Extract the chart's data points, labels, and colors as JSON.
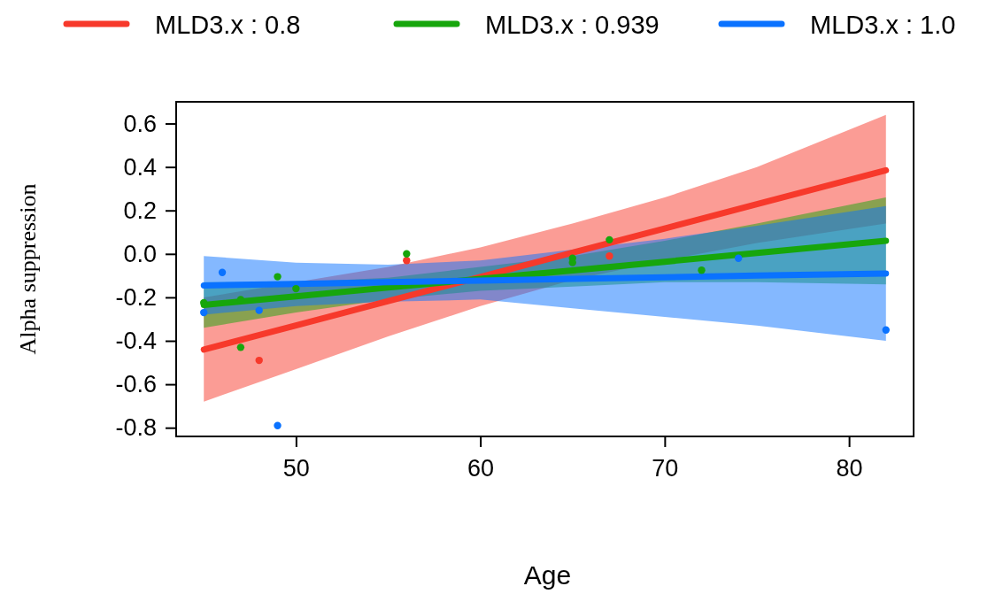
{
  "chart_data": {
    "type": "line",
    "xlabel": "Age",
    "ylabel": "Alpha suppression",
    "xlim": [
      43.5,
      83.5
    ],
    "ylim": [
      -0.84,
      0.7
    ],
    "xticks": [
      50,
      60,
      70,
      80
    ],
    "yticks": [
      -0.8,
      -0.6,
      -0.4,
      -0.2,
      {
        "value": 0,
        "label": "0.0"
      },
      0.2,
      0.4,
      0.6
    ],
    "legend": "top",
    "series": [
      {
        "name": "MLD3.x : 0.8",
        "color": "#f7392b",
        "x": [
          45,
          50,
          55,
          60,
          65,
          70,
          75,
          82
        ],
        "values": [
          -0.44,
          -0.329,
          -0.217,
          -0.106,
          0.006,
          0.117,
          0.229,
          0.385
        ],
        "lower": [
          -0.68,
          -0.53,
          -0.38,
          -0.24,
          -0.12,
          -0.03,
          0.05,
          0.14
        ],
        "upper": [
          -0.2,
          -0.13,
          -0.06,
          0.03,
          0.14,
          0.26,
          0.4,
          0.64
        ]
      },
      {
        "name": "MLD3.x : 0.939",
        "color": "#17a60c",
        "x": [
          45,
          50,
          55,
          60,
          65,
          70,
          75,
          82
        ],
        "values": [
          -0.235,
          -0.195,
          -0.155,
          -0.115,
          -0.076,
          -0.036,
          0.004,
          0.06
        ],
        "lower": [
          -0.34,
          -0.27,
          -0.21,
          -0.17,
          -0.15,
          -0.13,
          -0.13,
          -0.14
        ],
        "upper": [
          -0.13,
          -0.13,
          -0.11,
          -0.06,
          -0.01,
          0.06,
          0.14,
          0.26
        ]
      },
      {
        "name": "MLD3.x : 1.0",
        "color": "#0a72ff",
        "x": [
          45,
          50,
          55,
          60,
          65,
          70,
          75,
          82
        ],
        "values": [
          -0.145,
          -0.138,
          -0.13,
          -0.123,
          -0.115,
          -0.108,
          -0.1,
          -0.09
        ],
        "lower": [
          -0.28,
          -0.24,
          -0.22,
          -0.21,
          -0.25,
          -0.29,
          -0.33,
          -0.4
        ],
        "upper": [
          -0.01,
          -0.04,
          -0.05,
          -0.03,
          0.02,
          0.07,
          0.13,
          0.22
        ]
      },
      {
        "type": "scatter",
        "color": "#f7392b",
        "x": [
          48,
          56,
          67
        ],
        "values": [
          -0.49,
          -0.03,
          -0.01
        ]
      },
      {
        "type": "scatter",
        "color": "#17a60c",
        "x": [
          45,
          47,
          47,
          49,
          50,
          56,
          65,
          65,
          67,
          72
        ],
        "values": [
          -0.225,
          -0.21,
          -0.43,
          -0.105,
          -0.16,
          0,
          -0.02,
          -0.04,
          0.065,
          -0.075
        ]
      },
      {
        "type": "scatter",
        "color": "#0a72ff",
        "x": [
          45,
          46,
          48,
          49,
          74,
          82
        ],
        "values": [
          -0.27,
          -0.085,
          -0.26,
          -0.79,
          -0.02,
          -0.35
        ]
      }
    ]
  }
}
